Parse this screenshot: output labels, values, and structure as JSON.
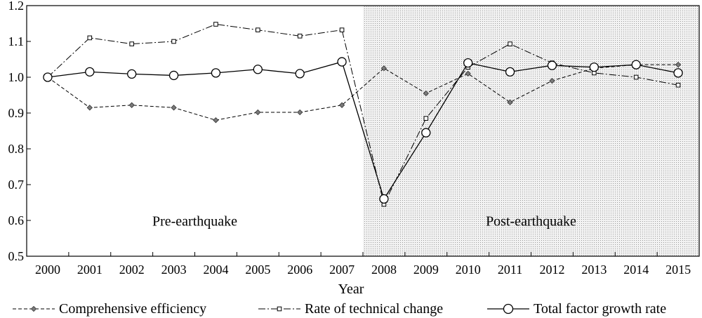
{
  "chart_data": {
    "type": "line",
    "xlabel": "Year",
    "ylabel": "",
    "ylim": [
      0.5,
      1.2
    ],
    "yticks": [
      "0.5",
      "0.6",
      "0.7",
      "0.8",
      "0.9",
      "1.0",
      "1.1",
      "1.2"
    ],
    "categories": [
      "2000",
      "2001",
      "2002",
      "2003",
      "2004",
      "2005",
      "2006",
      "2007",
      "2008",
      "2009",
      "2010",
      "2011",
      "2012",
      "2013",
      "2014",
      "2015"
    ],
    "grid": false,
    "legend_position": "bottom",
    "regions": [
      {
        "label": "Pre-earthquake",
        "from": "2000",
        "to": "2007",
        "shaded": false
      },
      {
        "label": "Post-earthquake",
        "from": "2008",
        "to": "2015",
        "shaded": true
      }
    ],
    "series": [
      {
        "name": "Comprehensive efficiency",
        "style": "dashed-diamond",
        "values": [
          1.0,
          0.915,
          0.922,
          0.915,
          0.88,
          0.902,
          0.902,
          0.922,
          1.025,
          0.955,
          1.01,
          0.93,
          0.99,
          1.025,
          1.035,
          1.035
        ]
      },
      {
        "name": "Rate of technical change",
        "style": "dashdot-square",
        "values": [
          1.0,
          1.11,
          1.093,
          1.1,
          1.148,
          1.132,
          1.115,
          1.132,
          0.645,
          0.885,
          1.028,
          1.093,
          1.04,
          1.012,
          1.0,
          0.978
        ]
      },
      {
        "name": "Total factor growth rate",
        "style": "solid-circle",
        "values": [
          1.0,
          1.015,
          1.009,
          1.005,
          1.012,
          1.022,
          1.01,
          1.043,
          0.66,
          0.845,
          1.04,
          1.015,
          1.033,
          1.028,
          1.035,
          1.012
        ]
      }
    ]
  }
}
